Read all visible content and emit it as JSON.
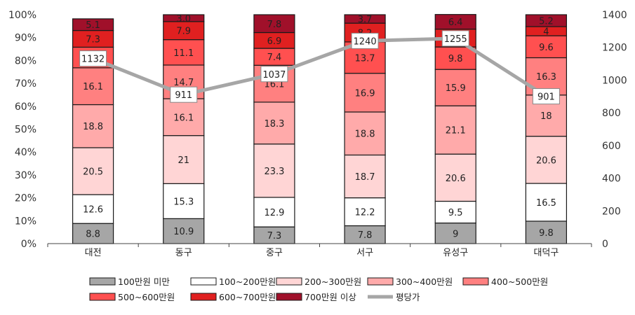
{
  "chart_data": {
    "type": "bar",
    "stacked": true,
    "percent_stacked": true,
    "categories": [
      "대전",
      "동구",
      "중구",
      "서구",
      "유성구",
      "대덕구"
    ],
    "series": [
      {
        "name": "100만원 미만",
        "color": "#a6a6a6",
        "values": [
          8.8,
          10.9,
          7.3,
          7.8,
          9,
          9.8
        ]
      },
      {
        "name": "100~200만원",
        "color": "#ffffff",
        "values": [
          12.6,
          15.3,
          12.9,
          12.2,
          9.5,
          16.5
        ]
      },
      {
        "name": "200~300만원",
        "color": "#ffd5d5",
        "values": [
          20.5,
          21,
          23.3,
          18.7,
          20.6,
          20.6
        ]
      },
      {
        "name": "300~400만원",
        "color": "#ffaaaa",
        "values": [
          18.8,
          16.1,
          18.3,
          18.8,
          21.1,
          18
        ]
      },
      {
        "name": "400~500만원",
        "color": "#ff8080",
        "values": [
          16.1,
          14.7,
          16.1,
          16.9,
          15.9,
          16.3
        ]
      },
      {
        "name": "500~600만원",
        "color": "#ff5050",
        "values": [
          9.0,
          11.1,
          7.4,
          13.7,
          9.8,
          9.6
        ]
      },
      {
        "name": "600~700만원",
        "color": "#e02020",
        "values": [
          7.3,
          7.9,
          6.9,
          8.2,
          7.8,
          4
        ]
      },
      {
        "name": "700만원 이상",
        "color": "#a0102a",
        "values": [
          5.1,
          3.0,
          7.8,
          3.7,
          6.4,
          5.2
        ]
      }
    ],
    "segment_labels": [
      [
        "8.8",
        "12.6",
        "20.5",
        "18.8",
        "16.1",
        "",
        "7.3",
        "5.1"
      ],
      [
        "10.9",
        "15.3",
        "21",
        "16.1",
        "14.7",
        "11.1",
        "7.9",
        "3.0"
      ],
      [
        "7.3",
        "12.9",
        "23.3",
        "18.3",
        "16.1",
        "7.4",
        "6.9",
        "7.8"
      ],
      [
        "7.8",
        "12.2",
        "18.7",
        "18.8",
        "16.9",
        "13.7",
        "8.2",
        "3.7"
      ],
      [
        "9",
        "9.5",
        "20.6",
        "21.1",
        "15.9",
        "9.8",
        "",
        "6.4"
      ],
      [
        "9.8",
        "16.5",
        "20.6",
        "18",
        "16.3",
        "9.6",
        "4",
        "5.2"
      ]
    ],
    "line_series": {
      "name": "평당가",
      "color": "#a6a6a6",
      "values": [
        1132,
        911,
        1037,
        1240,
        1255,
        901
      ]
    },
    "y_left": {
      "min": 0,
      "max": 100,
      "ticks": [
        "0%",
        "10%",
        "20%",
        "30%",
        "40%",
        "50%",
        "60%",
        "70%",
        "80%",
        "90%",
        "100%"
      ]
    },
    "y_right": {
      "min": 0,
      "max": 1400,
      "ticks": [
        "0",
        "200",
        "400",
        "600",
        "800",
        "1000",
        "1200",
        "1400"
      ]
    },
    "legend_position": "bottom",
    "grid": false
  }
}
